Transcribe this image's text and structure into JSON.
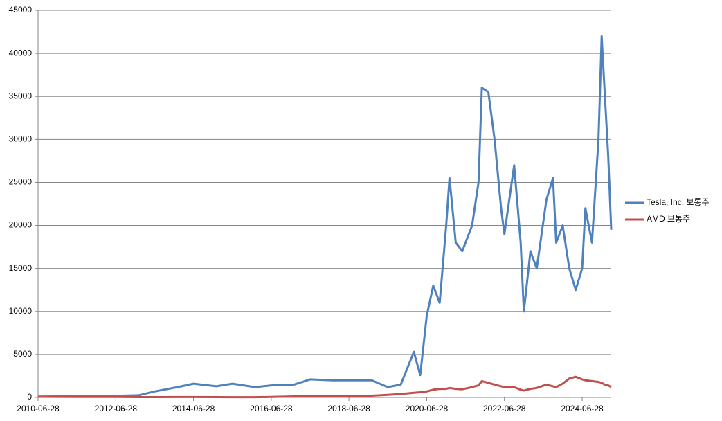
{
  "chart_data": {
    "type": "line",
    "x": [
      "2010-06-28",
      "2011-06-28",
      "2012-06-28",
      "2013-01-28",
      "2013-06-28",
      "2014-01-28",
      "2014-06-28",
      "2015-01-28",
      "2015-06-28",
      "2016-01-28",
      "2016-06-28",
      "2017-01-28",
      "2017-06-28",
      "2018-01-28",
      "2018-06-28",
      "2019-01-28",
      "2019-06-28",
      "2019-10-28",
      "2020-02-28",
      "2020-04-28",
      "2020-06-28",
      "2020-08-28",
      "2020-10-28",
      "2020-12-28",
      "2021-01-28",
      "2021-03-28",
      "2021-05-28",
      "2021-08-28",
      "2021-10-28",
      "2021-11-28",
      "2022-01-28",
      "2022-03-28",
      "2022-05-28",
      "2022-06-28",
      "2022-09-28",
      "2022-11-28",
      "2022-12-28",
      "2023-02-28",
      "2023-04-28",
      "2023-07-28",
      "2023-09-28",
      "2023-10-28",
      "2023-12-28",
      "2024-02-28",
      "2024-04-28",
      "2024-06-28",
      "2024-07-28",
      "2024-09-28",
      "2024-11-28",
      "2024-12-28",
      "2025-01-28",
      "2025-02-28",
      "2025-03-28"
    ],
    "series": [
      {
        "name": "Tesla, Inc. 보통주",
        "color": "#4f81bd",
        "values": [
          100,
          150,
          180,
          250,
          700,
          1200,
          1600,
          1300,
          1600,
          1200,
          1400,
          1500,
          2100,
          2000,
          2000,
          2000,
          1200,
          1500,
          5300,
          2600,
          9500,
          13000,
          11000,
          20000,
          25500,
          18000,
          17000,
          20000,
          25000,
          36000,
          35500,
          30000,
          22000,
          19000,
          27000,
          18000,
          10000,
          17000,
          15000,
          23000,
          25500,
          18000,
          20000,
          15000,
          12500,
          15000,
          22000,
          18000,
          30000,
          42000,
          35000,
          28000,
          19500
        ]
      },
      {
        "name": "AMD 보통주",
        "color": "#c0504d",
        "values": [
          80,
          60,
          60,
          40,
          40,
          50,
          50,
          40,
          30,
          30,
          60,
          120,
          130,
          120,
          160,
          200,
          300,
          400,
          550,
          600,
          700,
          900,
          1000,
          1000,
          1100,
          1000,
          950,
          1200,
          1400,
          1900,
          1700,
          1500,
          1300,
          1200,
          1200,
          900,
          800,
          1000,
          1100,
          1500,
          1300,
          1200,
          1600,
          2200,
          2400,
          2100,
          2000,
          1900,
          1800,
          1700,
          1500,
          1400,
          1200
        ]
      }
    ],
    "xlim": [
      "2010-06-28",
      "2025-03-28"
    ],
    "xticks": [
      "2010-06-28",
      "2012-06-28",
      "2014-06-28",
      "2016-06-28",
      "2018-06-28",
      "2020-06-28",
      "2022-06-28",
      "2024-06-28"
    ],
    "ylim": [
      0,
      45000
    ],
    "yticks": [
      0,
      5000,
      10000,
      15000,
      20000,
      25000,
      30000,
      35000,
      40000,
      45000
    ],
    "grid": true,
    "legend": "right"
  }
}
